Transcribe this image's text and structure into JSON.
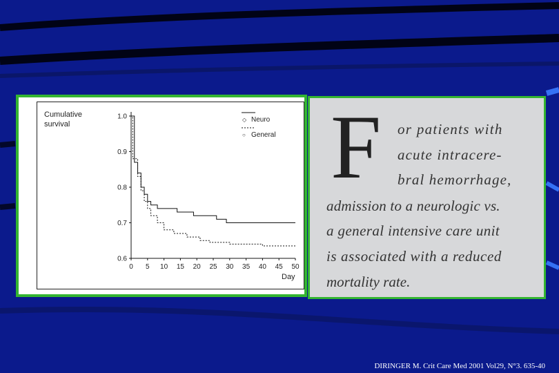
{
  "colors": {
    "background": "#0b1a8c",
    "frame_green": "#34b531",
    "quote_bg": "#d7d8da"
  },
  "chart_data": {
    "type": "line",
    "title": "",
    "ylabel": "Cumulative survival",
    "xlabel": "Day",
    "xlim": [
      0,
      50
    ],
    "ylim": [
      0.6,
      1.0
    ],
    "x_ticks": [
      0,
      5,
      10,
      15,
      20,
      25,
      30,
      35,
      40,
      45,
      50
    ],
    "y_ticks": [
      "0.6",
      "0.7",
      "0.8",
      "0.9",
      "1.0"
    ],
    "legend_position": "top-right",
    "series": [
      {
        "name": "Neuro",
        "line_style": "solid",
        "points": [
          [
            0,
            1.0
          ],
          [
            1,
            0.87
          ],
          [
            2,
            0.84
          ],
          [
            3,
            0.8
          ],
          [
            4,
            0.78
          ],
          [
            5,
            0.76
          ],
          [
            6,
            0.75
          ],
          [
            8,
            0.74
          ],
          [
            10,
            0.74
          ],
          [
            14,
            0.73
          ],
          [
            19,
            0.72
          ],
          [
            22,
            0.72
          ],
          [
            26,
            0.71
          ],
          [
            28,
            0.71
          ],
          [
            29,
            0.7
          ],
          [
            39,
            0.7
          ],
          [
            50,
            0.7
          ]
        ]
      },
      {
        "name": "General",
        "line_style": "dashed",
        "points": [
          [
            0,
            1.0
          ],
          [
            0.5,
            0.88
          ],
          [
            2,
            0.83
          ],
          [
            3,
            0.79
          ],
          [
            4,
            0.76
          ],
          [
            5,
            0.74
          ],
          [
            6,
            0.72
          ],
          [
            8,
            0.7
          ],
          [
            10,
            0.68
          ],
          [
            13,
            0.67
          ],
          [
            17,
            0.66
          ],
          [
            21,
            0.65
          ],
          [
            24,
            0.645
          ],
          [
            30,
            0.64
          ],
          [
            37,
            0.64
          ],
          [
            40,
            0.635
          ],
          [
            50,
            0.635
          ]
        ]
      }
    ]
  },
  "quote": {
    "drop_cap": "F",
    "lines": [
      "or patients with",
      "acute intracere-",
      "bral hemorrhage,",
      "admission to a neurologic vs.",
      "a general intensive care unit",
      "is associated with a reduced",
      "mortality rate."
    ]
  },
  "credit": "DIRINGER M. Crit Care Med 2001 Vol29, N°3. 635-40"
}
